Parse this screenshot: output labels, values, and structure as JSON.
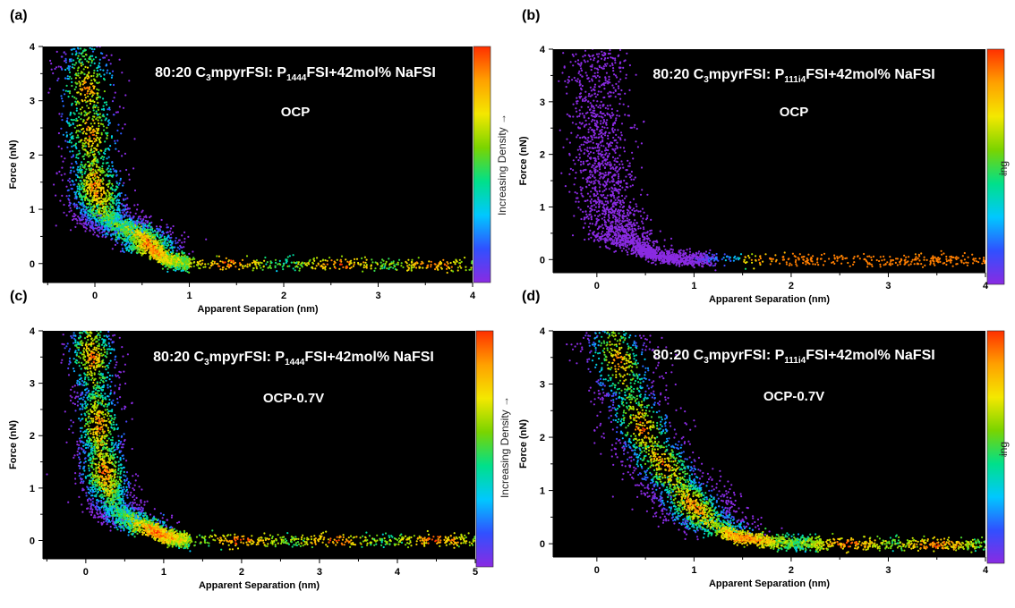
{
  "figure": {
    "colorbar_caption": "Increasing Density →"
  },
  "chart_data": [
    {
      "type": "scatter",
      "panel_label": "(a)",
      "title_main": "80:20 C",
      "title_parts": [
        {
          "text": "80:20 C",
          "sub": false
        },
        {
          "text": "3",
          "sub": true
        },
        {
          "text": "mpyrFSI: P",
          "sub": false
        },
        {
          "text": "1444",
          "sub": true
        },
        {
          "text": "FSI+42mol% NaFSI",
          "sub": false
        }
      ],
      "condition": "OCP",
      "xlabel": "Apparent Separation (nm)",
      "ylabel": "Force (nN)",
      "xlim": [
        -0.55,
        4
      ],
      "ylim": [
        -0.35,
        4
      ],
      "xticks": [
        0,
        1,
        2,
        3,
        4
      ],
      "yticks": [
        0,
        1,
        2,
        3,
        4
      ],
      "colorbar": "Increasing Density →",
      "colorscale": [
        "#8a2be2",
        "#3050ff",
        "#00c8ff",
        "#00e08a",
        "#7ad400",
        "#f4e800",
        "#ffa000",
        "#ff3000"
      ],
      "background": "#000000",
      "profile": [
        [
          -0.12,
          4.0
        ],
        [
          -0.08,
          2.8
        ],
        [
          -0.03,
          1.8
        ],
        [
          0.02,
          1.25
        ],
        [
          0.08,
          0.9
        ],
        [
          0.2,
          0.72
        ],
        [
          0.4,
          0.62
        ],
        [
          0.55,
          0.42
        ],
        [
          0.65,
          0.2
        ],
        [
          0.8,
          0.05
        ],
        [
          1.0,
          0.0
        ],
        [
          4.0,
          -0.03
        ]
      ],
      "density_peak_points": [
        [
          -0.03,
          3.2
        ],
        [
          0.0,
          2.4
        ],
        [
          0.05,
          1.4
        ],
        [
          0.55,
          0.3
        ],
        [
          1.4,
          0.0
        ],
        [
          2.6,
          -0.02
        ],
        [
          3.6,
          -0.03
        ]
      ],
      "density": "high"
    },
    {
      "type": "scatter",
      "panel_label": "(b)",
      "title_main": "80:20 C",
      "title_parts": [
        {
          "text": "80:20 C",
          "sub": false
        },
        {
          "text": "3",
          "sub": true
        },
        {
          "text": "mpyrFSI: P",
          "sub": false
        },
        {
          "text": "111i4",
          "sub": true
        },
        {
          "text": "FSI+42mol% NaFSI",
          "sub": false
        }
      ],
      "condition": "OCP",
      "xlabel": "Apparent Separation (nm)",
      "ylabel": "Force (nN)",
      "xlim": [
        -0.45,
        4
      ],
      "ylim": [
        -0.25,
        4
      ],
      "xticks": [
        0,
        1,
        2,
        3,
        4
      ],
      "yticks": [
        0,
        1,
        2,
        3,
        4
      ],
      "colorbar": "Increasing Density",
      "colorscale": [
        "#8a2be2",
        "#3050ff",
        "#00c8ff",
        "#00e08a",
        "#7ad400",
        "#f4e800",
        "#ffa000",
        "#ff3000"
      ],
      "background": "#000000",
      "profile": [
        [
          0.0,
          4.0
        ],
        [
          0.02,
          3.0
        ],
        [
          0.05,
          2.0
        ],
        [
          0.1,
          1.2
        ],
        [
          0.2,
          0.6
        ],
        [
          0.35,
          0.3
        ],
        [
          0.55,
          0.1
        ],
        [
          0.8,
          0.02
        ],
        [
          1.2,
          0.0
        ],
        [
          4.0,
          -0.02
        ]
      ],
      "density_peak_points": [
        [
          2.2,
          0.0
        ],
        [
          3.0,
          -0.01
        ],
        [
          3.7,
          -0.02
        ]
      ],
      "density": "low"
    },
    {
      "type": "scatter",
      "panel_label": "(c)",
      "title_main": "80:20 C",
      "title_parts": [
        {
          "text": "80:20 C",
          "sub": false
        },
        {
          "text": "3",
          "sub": true
        },
        {
          "text": "mpyrFSI: P",
          "sub": false
        },
        {
          "text": "1444",
          "sub": true
        },
        {
          "text": "FSI+42mol% NaFSI",
          "sub": false
        }
      ],
      "condition": "OCP-0.7V",
      "xlabel": "Apparent Separation (nm)",
      "ylabel": "Force (nN)",
      "xlim": [
        -0.55,
        5
      ],
      "ylim": [
        -0.35,
        4
      ],
      "xticks": [
        0,
        1,
        2,
        3,
        4,
        5
      ],
      "yticks": [
        0,
        1,
        2,
        3,
        4
      ],
      "colorbar": "Increasing Density →",
      "colorscale": [
        "#8a2be2",
        "#3050ff",
        "#00c8ff",
        "#00e08a",
        "#7ad400",
        "#f4e800",
        "#ffa000",
        "#ff3000"
      ],
      "background": "#000000",
      "profile": [
        [
          0.05,
          4.0
        ],
        [
          0.12,
          3.0
        ],
        [
          0.18,
          2.0
        ],
        [
          0.25,
          1.2
        ],
        [
          0.35,
          0.6
        ],
        [
          0.6,
          0.38
        ],
        [
          0.85,
          0.2
        ],
        [
          1.05,
          0.05
        ],
        [
          1.3,
          0.0
        ],
        [
          5.0,
          0.0
        ]
      ],
      "density_peak_points": [
        [
          0.1,
          3.5
        ],
        [
          0.18,
          2.2
        ],
        [
          0.25,
          1.3
        ],
        [
          0.9,
          0.15
        ],
        [
          2.0,
          0.0
        ],
        [
          3.2,
          0.0
        ],
        [
          4.5,
          0.0
        ]
      ],
      "density": "high"
    },
    {
      "type": "scatter",
      "panel_label": "(d)",
      "title_main": "80:20 C",
      "title_parts": [
        {
          "text": "80:20 C",
          "sub": false
        },
        {
          "text": "3",
          "sub": true
        },
        {
          "text": "mpyrFSI: P",
          "sub": false
        },
        {
          "text": "111i4",
          "sub": true
        },
        {
          "text": "FSI+42mol% NaFSI",
          "sub": false
        }
      ],
      "condition": "OCP-0.7V",
      "xlabel": "Apparent Separation (nm)",
      "ylabel": "Force (nN)",
      "xlim": [
        -0.45,
        4
      ],
      "ylim": [
        -0.25,
        4
      ],
      "xticks": [
        0,
        1,
        2,
        3,
        4
      ],
      "yticks": [
        0,
        1,
        2,
        3,
        4
      ],
      "colorbar": "Increasing Density",
      "colorscale": [
        "#8a2be2",
        "#3050ff",
        "#00c8ff",
        "#00e08a",
        "#7ad400",
        "#f4e800",
        "#ffa000",
        "#ff3000"
      ],
      "background": "#000000",
      "profile": [
        [
          0.15,
          4.0
        ],
        [
          0.3,
          3.0
        ],
        [
          0.5,
          2.0
        ],
        [
          0.75,
          1.3
        ],
        [
          0.95,
          0.8
        ],
        [
          1.15,
          0.4
        ],
        [
          1.4,
          0.15
        ],
        [
          1.8,
          0.03
        ],
        [
          2.3,
          0.0
        ],
        [
          4.0,
          -0.02
        ]
      ],
      "density_peak_points": [
        [
          0.2,
          3.4
        ],
        [
          0.45,
          2.2
        ],
        [
          0.7,
          1.5
        ],
        [
          1.0,
          0.7
        ],
        [
          1.5,
          0.05
        ],
        [
          2.6,
          0.0
        ],
        [
          3.5,
          -0.01
        ]
      ],
      "density": "medium"
    }
  ]
}
